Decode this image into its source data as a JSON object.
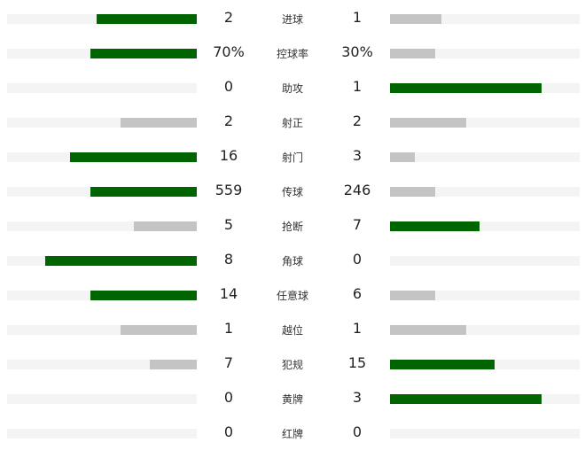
{
  "colors": {
    "leader": "#006400",
    "trailer": "#c4c4c4",
    "track": "#f4f4f4"
  },
  "stats": [
    {
      "label": "进球",
      "home": "2",
      "away": "1",
      "home_fill": 0.53,
      "away_fill": 0.27
    },
    {
      "label": "控球率",
      "home": "70%",
      "away": "30%",
      "home_fill": 0.56,
      "away_fill": 0.24
    },
    {
      "label": "助攻",
      "home": "0",
      "away": "1",
      "home_fill": 0,
      "away_fill": 0.8
    },
    {
      "label": "射正",
      "home": "2",
      "away": "2",
      "home_fill": 0.4,
      "away_fill": 0.4
    },
    {
      "label": "射门",
      "home": "16",
      "away": "3",
      "home_fill": 0.67,
      "away_fill": 0.13
    },
    {
      "label": "传球",
      "home": "559",
      "away": "246",
      "home_fill": 0.56,
      "away_fill": 0.24
    },
    {
      "label": "抢断",
      "home": "5",
      "away": "7",
      "home_fill": 0.33,
      "away_fill": 0.47
    },
    {
      "label": "角球",
      "home": "8",
      "away": "0",
      "home_fill": 0.8,
      "away_fill": 0
    },
    {
      "label": "任意球",
      "home": "14",
      "away": "6",
      "home_fill": 0.56,
      "away_fill": 0.24
    },
    {
      "label": "越位",
      "home": "1",
      "away": "1",
      "home_fill": 0.4,
      "away_fill": 0.4
    },
    {
      "label": "犯规",
      "home": "7",
      "away": "15",
      "home_fill": 0.25,
      "away_fill": 0.55
    },
    {
      "label": "黄牌",
      "home": "0",
      "away": "3",
      "home_fill": 0,
      "away_fill": 0.8
    },
    {
      "label": "红牌",
      "home": "0",
      "away": "0",
      "home_fill": 0,
      "away_fill": 0
    }
  ]
}
